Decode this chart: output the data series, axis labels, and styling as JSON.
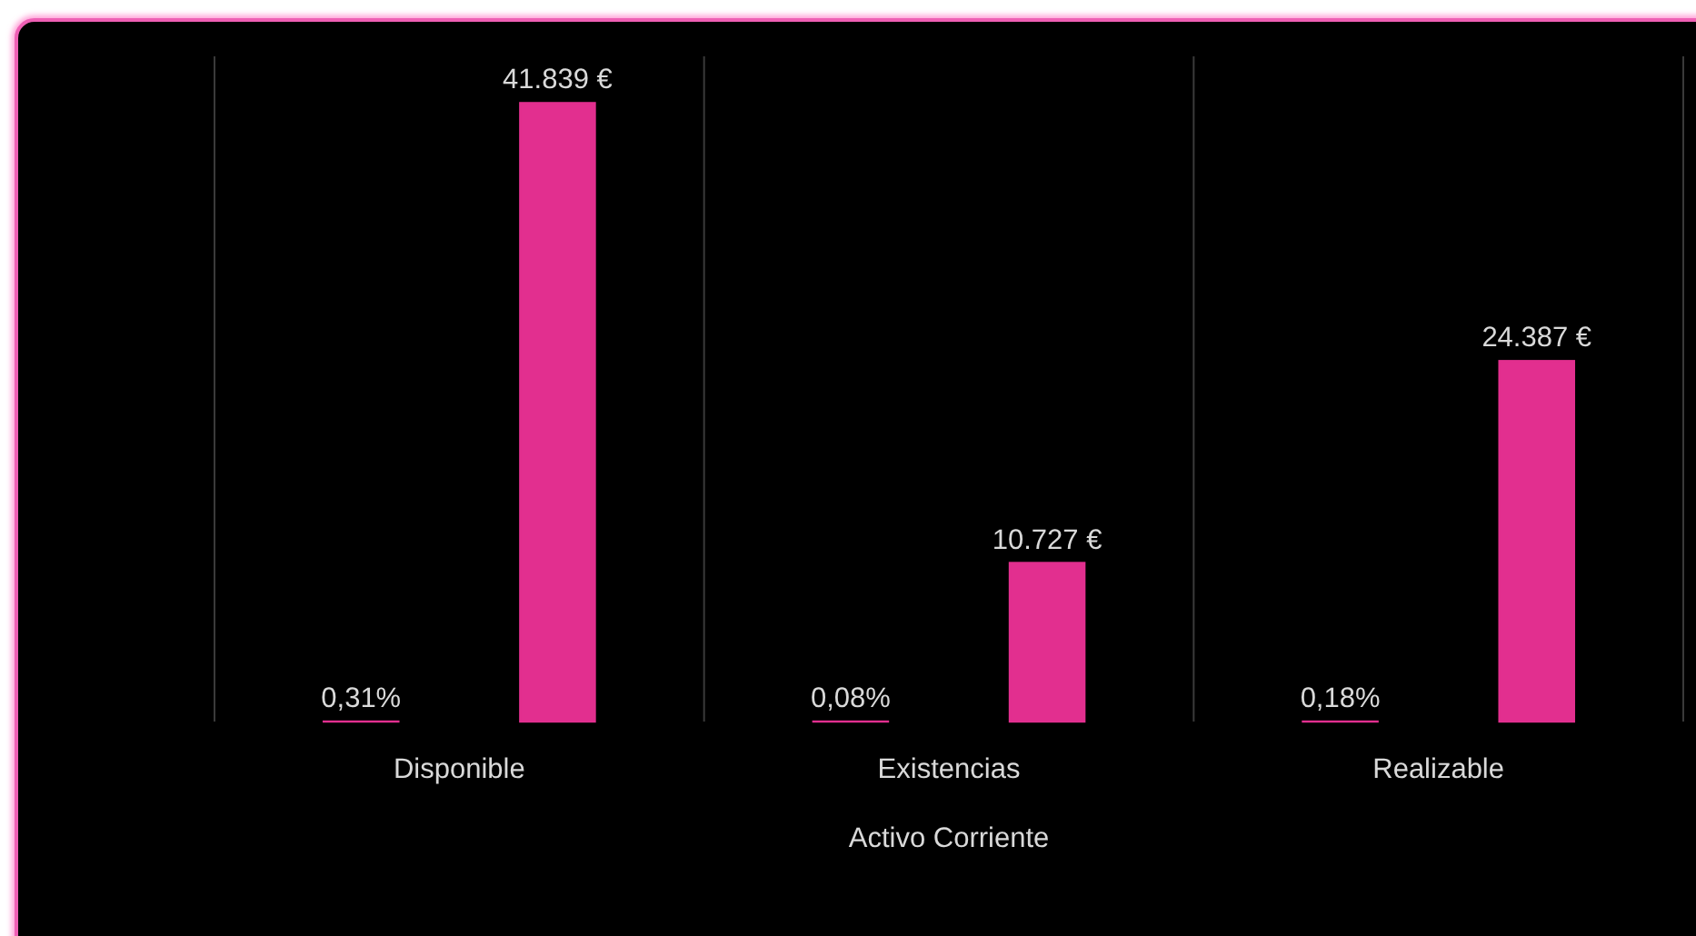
{
  "chart_data": {
    "type": "bar",
    "xlabel": "Activo Corriente",
    "categories": [
      "Disponible",
      "Existencias",
      "Realizable"
    ],
    "series": [
      {
        "color": "#e22f8f",
        "values": [
          0.31,
          0.08,
          0.18
        ],
        "value_labels": [
          "0,31%",
          "0,08%",
          "0,18%"
        ]
      },
      {
        "color": "#e22f8f",
        "values": [
          41839,
          10727,
          24387
        ],
        "value_labels": [
          "41.839 €",
          "10.727 €",
          "24.387 €"
        ]
      }
    ],
    "ylim": [
      0,
      45000
    ],
    "tick_labels": "x",
    "grid": "x"
  }
}
